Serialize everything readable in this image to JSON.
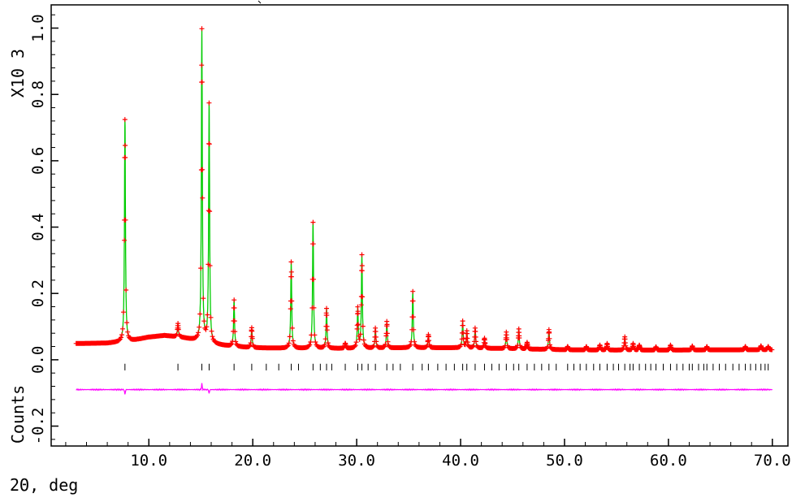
{
  "chart_data": {
    "type": "line",
    "xlabel": "2Θ, deg",
    "ylabel": "Counts",
    "y_multiplier": "X10 3",
    "xlim": [
      0.6,
      71.5
    ],
    "ylim": [
      -0.26,
      1.07
    ],
    "x_ticks": [
      "10.0",
      "20.0",
      "30.0",
      "40.0",
      "50.0",
      "60.0",
      "70.0"
    ],
    "x_tick_values": [
      10,
      20,
      30,
      40,
      50,
      60,
      70
    ],
    "y_ticks": [
      "-0.2",
      "0.0",
      "0.2",
      "0.4",
      "0.6",
      "0.8",
      "1.0"
    ],
    "y_tick_values": [
      -0.2,
      0,
      0.2,
      0.4,
      0.6,
      0.8,
      1.0
    ],
    "grid": false,
    "colors": {
      "observed": "#ff0000",
      "calculated": "#00cc00",
      "difference": "#ff00ff",
      "reflections": "#000000"
    },
    "x_range": [
      3.0,
      70.0
    ],
    "background": [
      [
        3,
        0.049
      ],
      [
        6,
        0.05
      ],
      [
        8,
        0.055
      ],
      [
        10,
        0.068
      ],
      [
        11.5,
        0.073
      ],
      [
        13,
        0.068
      ],
      [
        14.5,
        0.058
      ],
      [
        16,
        0.047
      ],
      [
        18,
        0.04
      ],
      [
        20,
        0.036
      ],
      [
        25,
        0.034
      ],
      [
        30,
        0.034
      ],
      [
        35,
        0.036
      ],
      [
        40,
        0.036
      ],
      [
        45,
        0.033
      ],
      [
        50,
        0.03
      ],
      [
        55,
        0.029
      ],
      [
        60,
        0.029
      ],
      [
        65,
        0.03
      ],
      [
        70,
        0.03
      ]
    ],
    "peaks": [
      [
        7.7,
        0.67
      ],
      [
        12.8,
        0.04
      ],
      [
        15.1,
        0.94
      ],
      [
        15.8,
        0.72
      ],
      [
        18.2,
        0.14
      ],
      [
        19.9,
        0.06
      ],
      [
        23.7,
        0.26
      ],
      [
        25.8,
        0.38
      ],
      [
        27.1,
        0.12
      ],
      [
        28.9,
        0.015
      ],
      [
        30.1,
        0.12
      ],
      [
        30.5,
        0.28
      ],
      [
        31.8,
        0.06
      ],
      [
        32.9,
        0.08
      ],
      [
        35.4,
        0.17
      ],
      [
        36.9,
        0.04
      ],
      [
        40.2,
        0.08
      ],
      [
        40.6,
        0.05
      ],
      [
        41.4,
        0.06
      ],
      [
        42.3,
        0.03
      ],
      [
        44.4,
        0.05
      ],
      [
        45.6,
        0.06
      ],
      [
        46.4,
        0.02
      ],
      [
        48.5,
        0.06
      ],
      [
        50.3,
        0.01
      ],
      [
        52.1,
        0.01
      ],
      [
        53.4,
        0.015
      ],
      [
        54.1,
        0.02
      ],
      [
        55.8,
        0.04
      ],
      [
        56.6,
        0.02
      ],
      [
        57.2,
        0.015
      ],
      [
        58.8,
        0.01
      ],
      [
        60.2,
        0.015
      ],
      [
        62.3,
        0.012
      ],
      [
        63.7,
        0.01
      ],
      [
        67.4,
        0.01
      ],
      [
        68.9,
        0.012
      ],
      [
        69.6,
        0.01
      ]
    ],
    "reflection_markers": [
      7.7,
      12.8,
      15.1,
      15.8,
      18.2,
      19.9,
      21.3,
      22.5,
      23.7,
      24.4,
      25.8,
      26.5,
      27.1,
      27.6,
      28.9,
      30.1,
      30.5,
      31.1,
      31.8,
      32.9,
      33.5,
      34.2,
      35.4,
      36.3,
      36.9,
      37.8,
      38.6,
      39.4,
      40.2,
      40.6,
      41.4,
      42.3,
      43.0,
      43.7,
      44.4,
      45.1,
      45.6,
      46.4,
      47.1,
      47.8,
      48.5,
      49.2,
      50.3,
      50.9,
      51.5,
      52.1,
      52.8,
      53.4,
      54.1,
      54.7,
      55.2,
      55.8,
      56.3,
      56.6,
      57.2,
      57.8,
      58.3,
      58.8,
      59.5,
      60.2,
      60.8,
      61.4,
      62.0,
      62.3,
      62.9,
      63.4,
      63.7,
      64.3,
      64.9,
      65.5,
      66.2,
      66.8,
      67.4,
      67.9,
      68.4,
      68.9,
      69.3,
      69.6
    ],
    "difference_offset": -0.09,
    "difference_spikes": [
      [
        7.7,
        -0.015
      ],
      [
        15.1,
        0.018
      ],
      [
        15.8,
        -0.012
      ]
    ]
  }
}
